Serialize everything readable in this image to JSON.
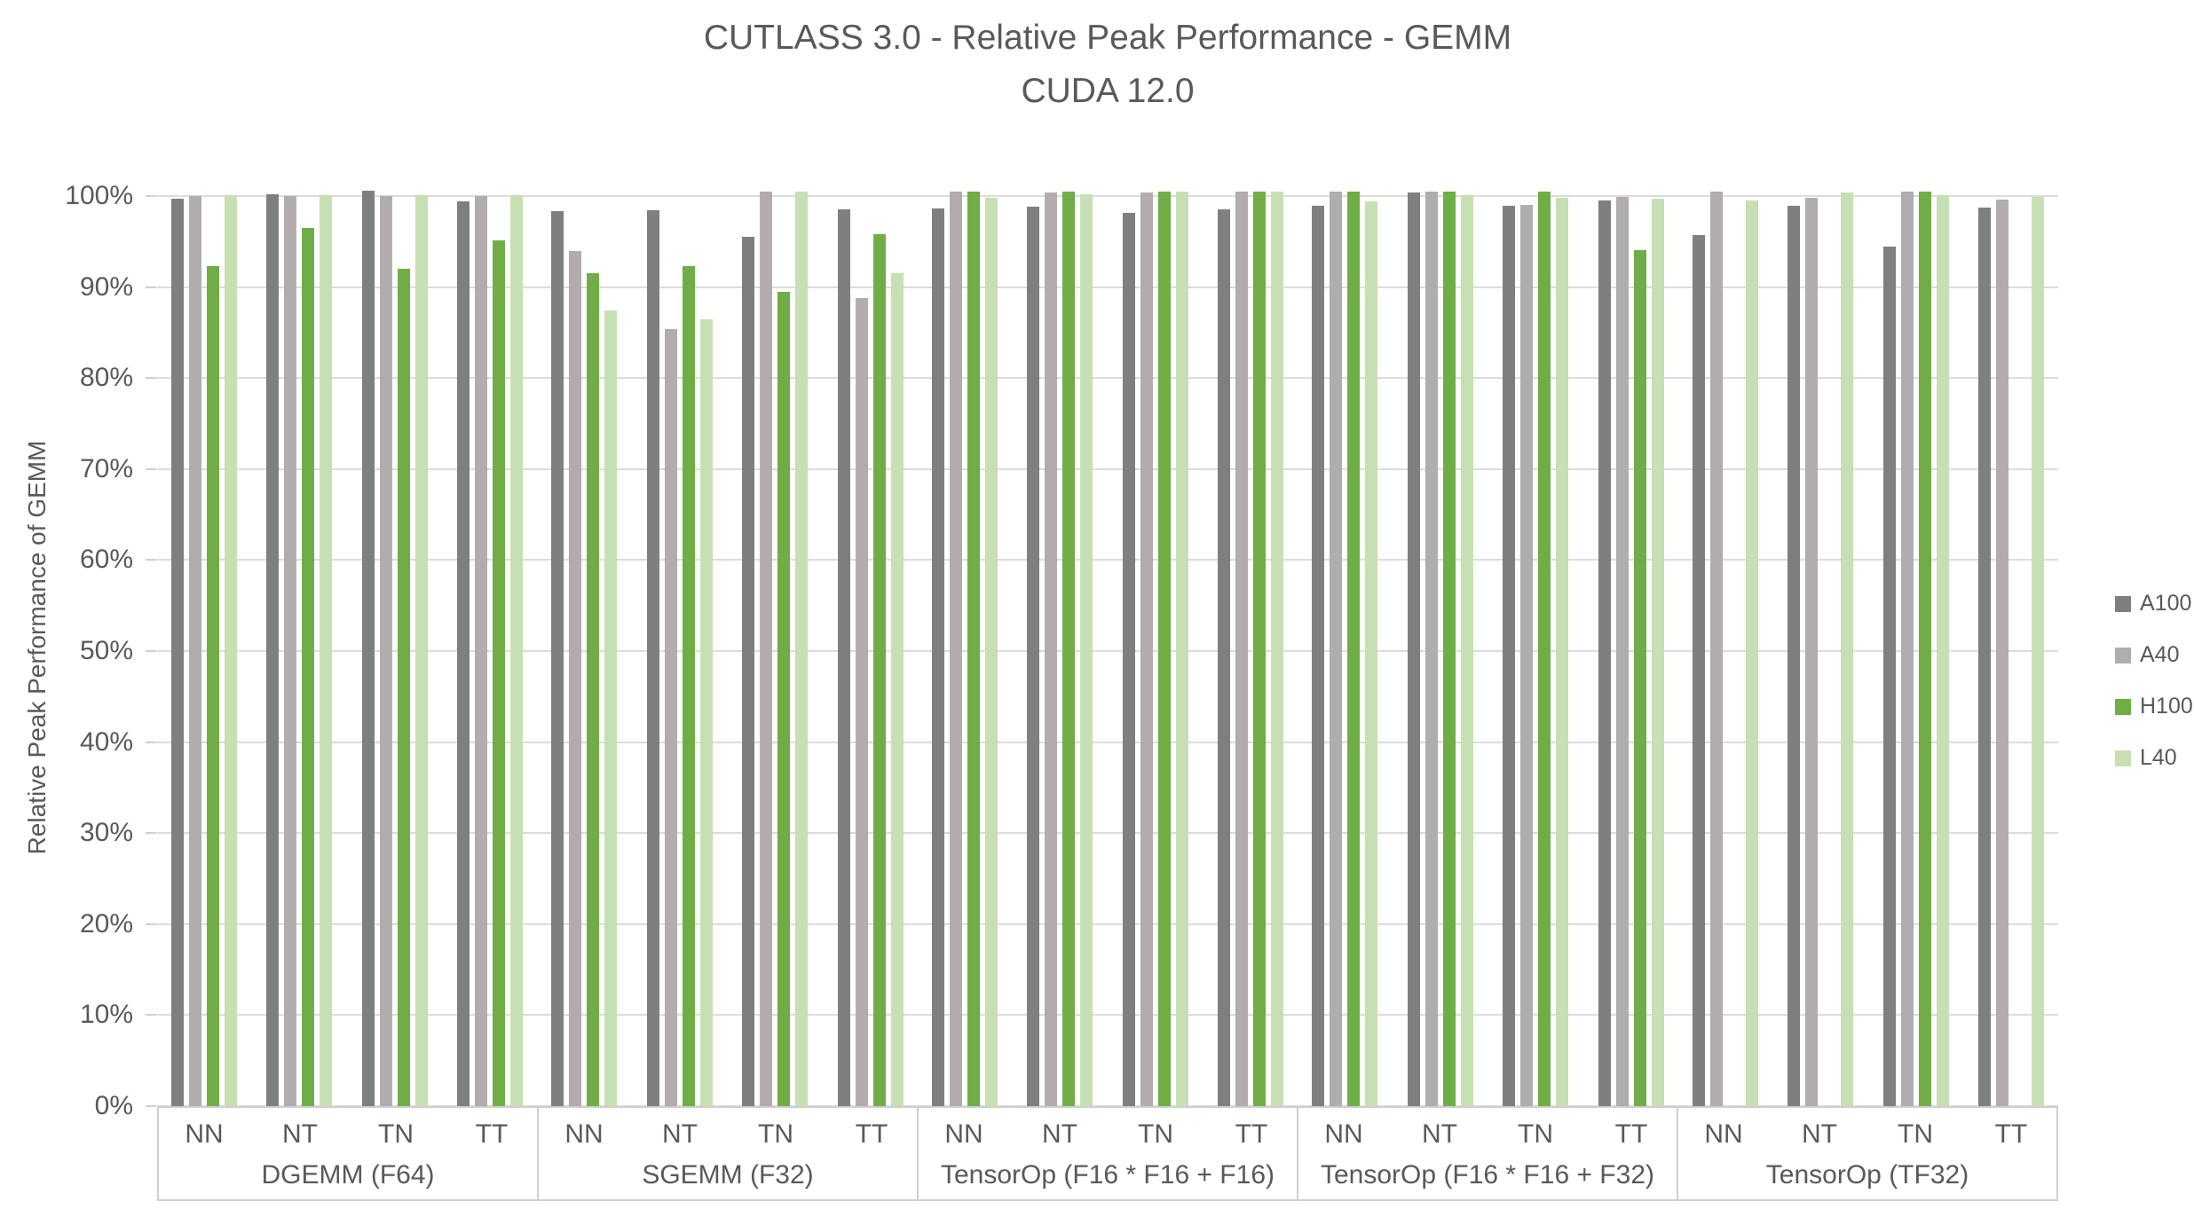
{
  "title": {
    "line1": "CUTLASS 3.0 - Relative Peak Performance - GEMM",
    "line2": "CUDA 12.0"
  },
  "y_axis": {
    "title": "Relative Peak Performance of GEMM",
    "tick_labels": [
      "0%",
      "10%",
      "20%",
      "30%",
      "40%",
      "50%",
      "60%",
      "70%",
      "80%",
      "90%",
      "100%"
    ]
  },
  "colors": {
    "text": "#595959",
    "gridline": "#DCDCDC",
    "axis_border": "#D0CECE",
    "background": "#FFFFFF"
  },
  "chart_data": {
    "type": "bar",
    "title": "CUTLASS 3.0 - Relative Peak Performance - GEMM",
    "subtitle": "CUDA 12.0",
    "xlabel": "",
    "ylabel": "Relative Peak Performance of GEMM",
    "y_unit": "percent",
    "ylim": [
      0,
      100
    ],
    "grid": true,
    "legend_position": "right",
    "groups": [
      "DGEMM (F64)",
      "SGEMM (F32)",
      "TensorOp (F16 * F16 + F16)",
      "TensorOp (F16 * F16 + F32)",
      "TensorOp (TF32)"
    ],
    "subgroups": [
      "NN",
      "NT",
      "TN",
      "TT"
    ],
    "series": [
      {
        "name": "A100",
        "color": "#7F7F7F",
        "values": [
          [
            99.7,
            100.2,
            100.6,
            99.4
          ],
          [
            98.3,
            98.4,
            95.5,
            98.5
          ],
          [
            98.6,
            98.8,
            98.1,
            98.5
          ],
          [
            98.9,
            100.4,
            98.9,
            99.5
          ],
          [
            95.7,
            98.9,
            94.4,
            98.7
          ]
        ]
      },
      {
        "name": "A40",
        "color": "#B1ACAD",
        "values": [
          [
            100.0,
            100.0,
            100.0,
            100.0
          ],
          [
            94.0,
            85.4,
            100.5,
            88.8
          ],
          [
            100.5,
            100.4,
            100.4,
            100.5
          ],
          [
            100.5,
            100.5,
            99.0,
            99.9
          ],
          [
            100.5,
            99.8,
            100.5,
            99.6
          ]
        ]
      },
      {
        "name": "H100",
        "color": "#70AD47",
        "values": [
          [
            92.3,
            96.5,
            92.0,
            95.1
          ],
          [
            91.5,
            92.3,
            89.5,
            95.8
          ],
          [
            100.5,
            100.5,
            100.5,
            100.5
          ],
          [
            100.5,
            100.5,
            100.5,
            94.1
          ],
          [
            0,
            0,
            100.5,
            0
          ]
        ]
      },
      {
        "name": "L40",
        "color": "#C6E0B4",
        "values": [
          [
            100.1,
            100.1,
            100.1,
            100.1
          ],
          [
            87.4,
            86.5,
            100.5,
            91.5
          ],
          [
            99.8,
            100.2,
            100.5,
            100.5
          ],
          [
            99.4,
            100.1,
            99.8,
            99.7
          ],
          [
            99.5,
            100.4,
            100.1,
            99.9
          ]
        ]
      }
    ]
  }
}
